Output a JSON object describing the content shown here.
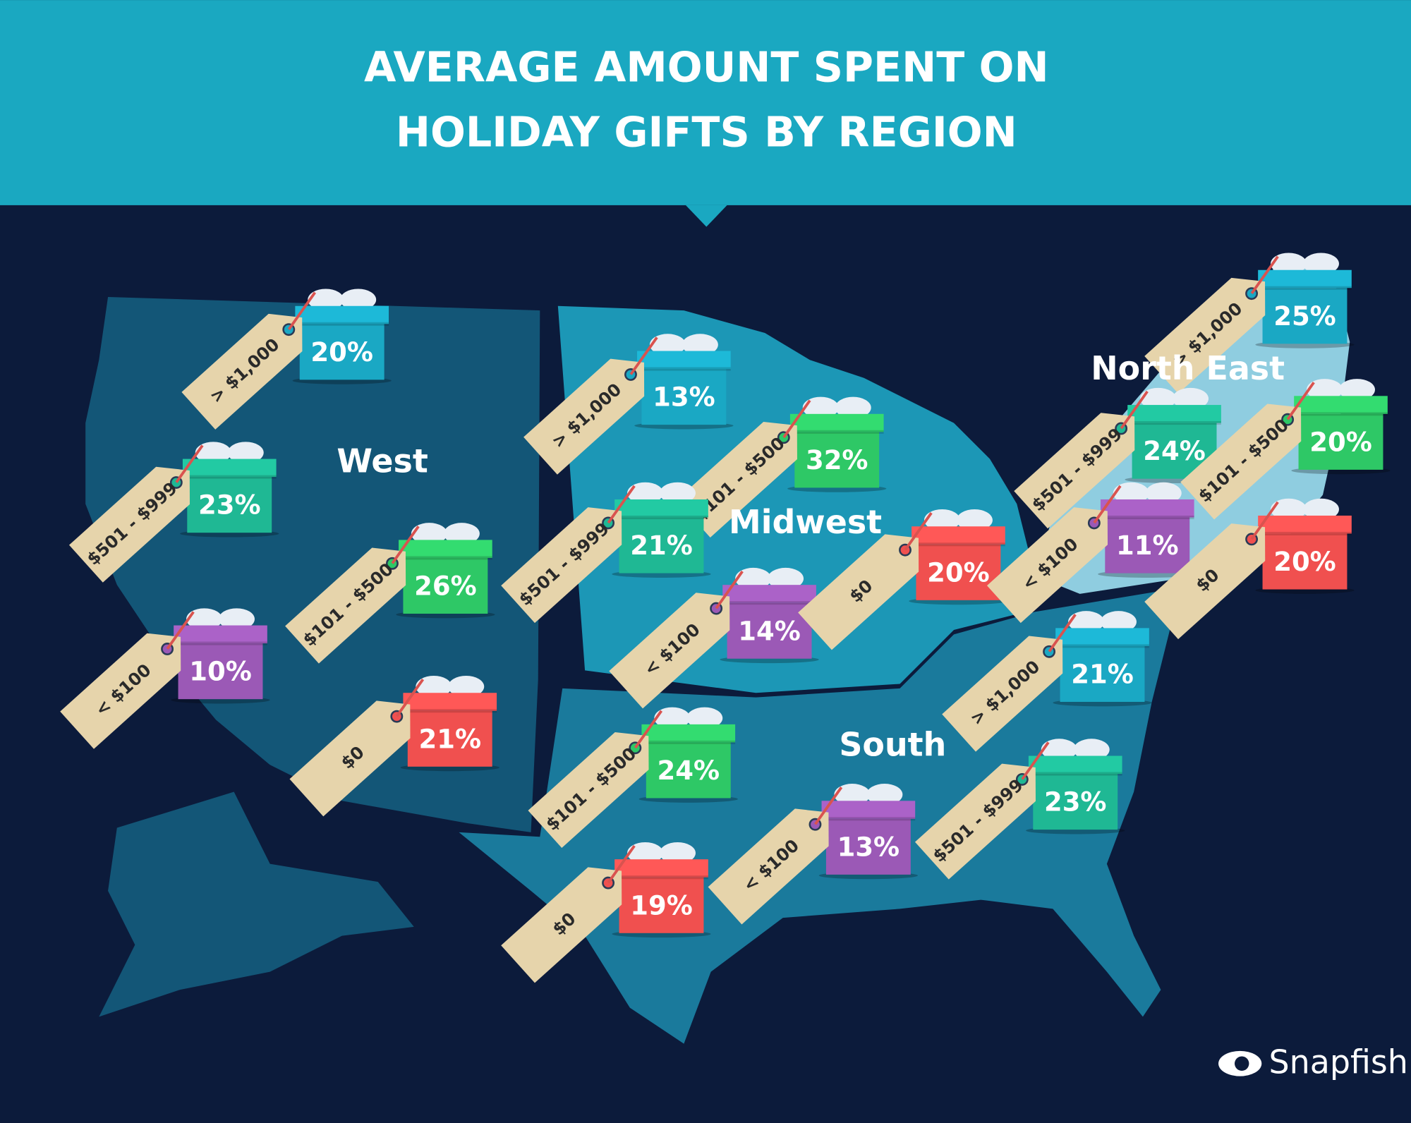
{
  "header": {
    "title_lines": [
      "AVERAGE AMOUNT SPENT ON",
      "HOLIDAY GIFTS BY REGION"
    ]
  },
  "regions": [
    {
      "name": "West",
      "gifts": [
        {
          "tag": "> $1,000",
          "value": "20%"
        },
        {
          "tag": "$501 - $999",
          "value": "23%"
        },
        {
          "tag": "$101 - $500",
          "value": "26%"
        },
        {
          "tag": "< $100",
          "value": "10%"
        },
        {
          "tag": "$0",
          "value": "21%"
        }
      ]
    },
    {
      "name": "Midwest",
      "gifts": [
        {
          "tag": "> $1,000",
          "value": "13%"
        },
        {
          "tag": "$101 - $500",
          "value": "32%"
        },
        {
          "tag": "$501 - $999",
          "value": "21%"
        },
        {
          "tag": "< $100",
          "value": "14%"
        },
        {
          "tag": "$0",
          "value": "20%"
        }
      ]
    },
    {
      "name": "North East",
      "gifts": [
        {
          "tag": "> $1,000",
          "value": "25%"
        },
        {
          "tag": "$501 - $999",
          "value": "24%"
        },
        {
          "tag": "$101 - $500",
          "value": "20%"
        },
        {
          "tag": "< $100",
          "value": "11%"
        },
        {
          "tag": "$0",
          "value": "20%"
        }
      ]
    },
    {
      "name": "South",
      "gifts": [
        {
          "tag": "> $1,000",
          "value": "21%"
        },
        {
          "tag": "$101 - $500",
          "value": "24%"
        },
        {
          "tag": "$501 - $999",
          "value": "23%"
        },
        {
          "tag": "< $100",
          "value": "13%"
        },
        {
          "tag": "$0",
          "value": "19%"
        }
      ]
    }
  ],
  "footer": {
    "brand": "Snapfish"
  }
}
